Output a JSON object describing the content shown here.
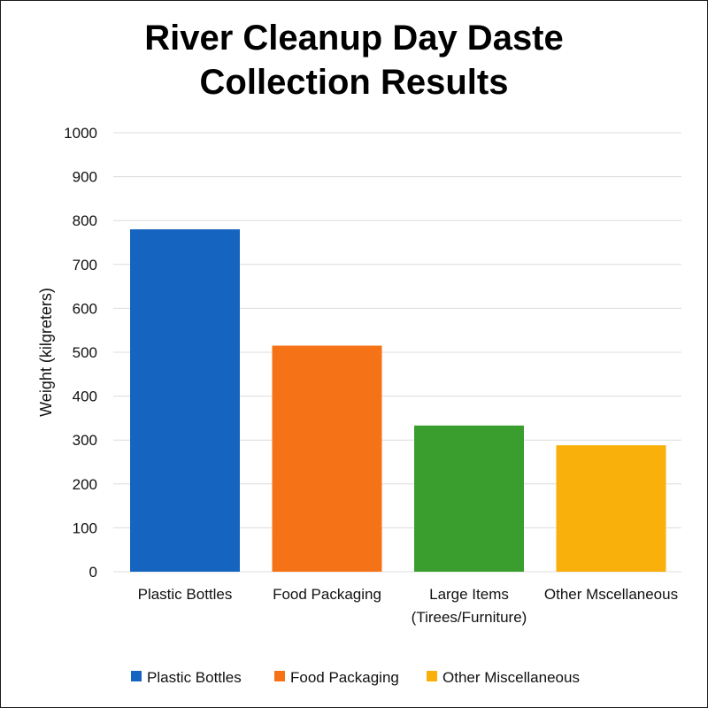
{
  "chart_data": {
    "type": "bar",
    "title_lines": [
      "River Cleanup Day Daste",
      "Collection Results"
    ],
    "xlabel": "",
    "ylabel": "Weight (kilgreters)",
    "ylim": [
      0,
      1000
    ],
    "yticks": [
      "0",
      "100",
      "200",
      "300",
      "400",
      "500",
      "600",
      "700",
      "800",
      "900",
      "1000"
    ],
    "grid": true,
    "categories": [
      [
        "Plastic Bottles"
      ],
      [
        "Food Packaging"
      ],
      [
        "Large Items",
        "(Tirees/Furniture)"
      ],
      [
        "Other Mscellaneous"
      ]
    ],
    "values": [
      780,
      515,
      333,
      288
    ],
    "colors": [
      "#1565C0",
      "#F57316",
      "#3A9E2E",
      "#F9B00A"
    ],
    "legend_position": "bottom",
    "legend": [
      {
        "label": "Plastic Bottles",
        "color": "#1565C0"
      },
      {
        "label": "Food Packaging",
        "color": "#F57316"
      },
      {
        "label": "Other Miscellaneous",
        "color": "#F9B00A"
      }
    ]
  }
}
